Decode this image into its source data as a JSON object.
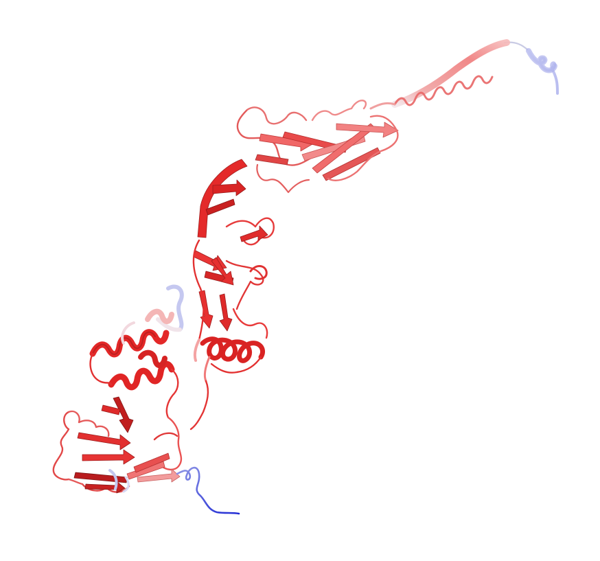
{
  "image": {
    "subject": "protein-ribbon-structure",
    "background_color": "#ffffff",
    "colors": {
      "core_red": "#e8262a",
      "dark_red": "#b81c1f",
      "salmon": "#ef7b7b",
      "pink": "#f5b0b0",
      "pale": "#f3e6ea",
      "lavender": "#c6c8f2",
      "blue": "#2230d6"
    }
  }
}
